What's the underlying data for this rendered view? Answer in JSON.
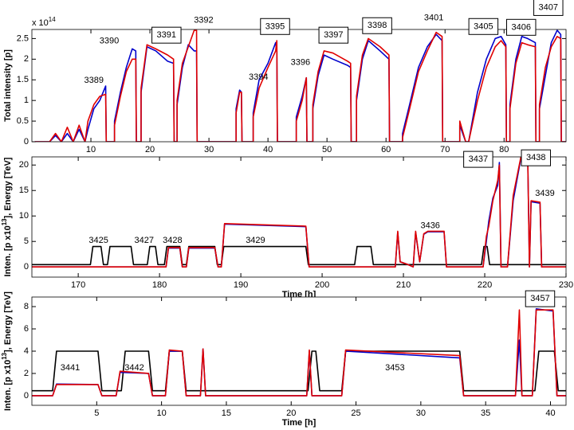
{
  "chart_data": [
    {
      "type": "line",
      "ylabel": [
        "Total intensity [p]"
      ],
      "scale_label": [
        "x 10",
        "14"
      ],
      "xlim": [
        0,
        90.5
      ],
      "ylim": [
        0,
        2.72
      ],
      "xticks": [
        10,
        20,
        30,
        40,
        50,
        60,
        70,
        80
      ],
      "yticks": [
        0,
        0.5,
        1,
        1.5,
        2,
        2.5
      ],
      "x": [
        0.5,
        3,
        4,
        5,
        6,
        7,
        8,
        9,
        9.5,
        10.5,
        11.5,
        12.5,
        12.6,
        14,
        14,
        15,
        16,
        17,
        17.6,
        17.7,
        18.5,
        18.5,
        19.5,
        21,
        23,
        24,
        24.1,
        24.6,
        24.6,
        25.5,
        26.5,
        27.5,
        27.9,
        28,
        34.6,
        34.6,
        35.2,
        35.5,
        35.6,
        37.5,
        37.5,
        38.5,
        40,
        41.3,
        41.5,
        41.6,
        44.8,
        44.8,
        45.8,
        46.5,
        46.6,
        47.6,
        47.6,
        48.5,
        49.5,
        51,
        53.5,
        54,
        54.1,
        55,
        55,
        56,
        57,
        59,
        60.5,
        60.6,
        62.8,
        62.8,
        64,
        65.5,
        67,
        68.5,
        69.5,
        69.6,
        72.5,
        72.5,
        73.5,
        74,
        75.5,
        77,
        78.5,
        79.5,
        80.3,
        80.4,
        81,
        81,
        82,
        83,
        84,
        85.3,
        85.4,
        86,
        86,
        87,
        88,
        89,
        89.6,
        89.7,
        90.5
      ],
      "series": [
        {
          "color": "#0000cc",
          "values": [
            0,
            0,
            0.15,
            0,
            0.2,
            0,
            0.3,
            0,
            0.3,
            0.8,
            1.0,
            1.35,
            0,
            0,
            0.5,
            1.2,
            1.8,
            2.25,
            2.2,
            0,
            0,
            1.2,
            2.3,
            2.2,
            1.95,
            1.9,
            0,
            0,
            0.9,
            1.8,
            2.35,
            2.2,
            2.2,
            0,
            0,
            0.8,
            1.25,
            1.2,
            0,
            0,
            0.7,
            1.5,
            1.9,
            2.4,
            2.2,
            0,
            0,
            0.6,
            1.1,
            1.55,
            0,
            0,
            0.8,
            1.6,
            2.1,
            2.0,
            1.85,
            1.8,
            0,
            0,
            1.0,
            2.0,
            2.45,
            2.2,
            2.0,
            0,
            0,
            0.2,
            0.9,
            1.8,
            2.3,
            2.6,
            2.45,
            0,
            0,
            0.4,
            0,
            0,
            1.2,
            2.0,
            2.5,
            2.55,
            2.35,
            0,
            0,
            0.9,
            2.0,
            2.55,
            2.5,
            2.4,
            0,
            0,
            0.8,
            1.6,
            2.4,
            2.7,
            2.6,
            0,
            0
          ]
        },
        {
          "color": "#e00000",
          "values": [
            0,
            0,
            0.2,
            0,
            0.35,
            0,
            0.4,
            0,
            0.5,
            0.9,
            1.1,
            1.15,
            0,
            0,
            0.4,
            1.1,
            1.7,
            2.0,
            2.0,
            0,
            0,
            1.3,
            2.35,
            2.25,
            2.1,
            2.0,
            0,
            0,
            1.0,
            1.9,
            2.3,
            2.7,
            2.7,
            0,
            0,
            0.7,
            1.2,
            1.2,
            0,
            0,
            0.6,
            1.3,
            1.8,
            2.2,
            2.45,
            0,
            0,
            0.5,
            1.0,
            1.55,
            0,
            0,
            0.9,
            1.7,
            2.2,
            2.15,
            1.95,
            1.9,
            0,
            0,
            1.1,
            2.1,
            2.5,
            2.3,
            2.1,
            0,
            0,
            0.1,
            0.8,
            1.7,
            2.2,
            2.65,
            2.55,
            0,
            0,
            0.5,
            0,
            0,
            1.0,
            1.8,
            2.3,
            2.45,
            2.3,
            0,
            0,
            0.8,
            1.9,
            2.4,
            2.35,
            2.3,
            0,
            0,
            0.9,
            1.8,
            2.3,
            2.55,
            2.5,
            0,
            0
          ]
        }
      ],
      "annotations": [
        {
          "text": "3389",
          "x": 10.5,
          "y": 1.48,
          "boxed": false
        },
        {
          "text": "3390",
          "x": 13.1,
          "y": 2.44,
          "boxed": false
        },
        {
          "text": "3391",
          "x": 22.8,
          "y": 2.58,
          "boxed": true
        },
        {
          "text": "3392",
          "x": 29.1,
          "y": 2.94,
          "boxed": false
        },
        {
          "text": "3394",
          "x": 38.4,
          "y": 1.56,
          "boxed": false
        },
        {
          "text": "3395",
          "x": 41.2,
          "y": 2.79,
          "boxed": true
        },
        {
          "text": "3396",
          "x": 45.5,
          "y": 1.92,
          "boxed": false
        },
        {
          "text": "3397",
          "x": 51.1,
          "y": 2.58,
          "boxed": true
        },
        {
          "text": "3398",
          "x": 58.5,
          "y": 2.81,
          "boxed": true
        },
        {
          "text": "3401",
          "x": 68.1,
          "y": 3.0,
          "boxed": false
        },
        {
          "text": "3405",
          "x": 76.5,
          "y": 2.79,
          "boxed": true
        },
        {
          "text": "3406",
          "x": 82.9,
          "y": 2.77,
          "boxed": true
        },
        {
          "text": "3407",
          "x": 87.5,
          "y": 3.25,
          "boxed": true
        }
      ]
    },
    {
      "type": "line",
      "ylabel": [
        "Inten. [p x10",
        "13",
        "], Energy [TeV]"
      ],
      "xlabel": "Time [h]",
      "xlim": [
        164.3,
        230
      ],
      "ylim": [
        -2,
        21.6
      ],
      "xticks": [
        170,
        180,
        190,
        200,
        210,
        220,
        230
      ],
      "yticks": [
        0,
        5,
        10,
        15,
        20
      ],
      "series": [
        {
          "color": "#000000",
          "x": [
            164.3,
            171.5,
            171.8,
            172.8,
            173.1,
            173.6,
            173.9,
            176.5,
            176.8,
            178.5,
            178.8,
            179.5,
            179.8,
            180.6,
            180.9,
            182.5,
            182.8,
            183.3,
            183.6,
            186.8,
            187.1,
            187.6,
            187.9,
            198,
            198.3,
            204,
            204.3,
            206,
            206.3,
            219.6,
            219.9,
            220.3,
            220.6,
            230
          ],
          "values": [
            0.45,
            0.45,
            4,
            4,
            0.45,
            0.45,
            4,
            4,
            0.45,
            0.45,
            4,
            4,
            0.45,
            0.45,
            4,
            4,
            0.45,
            0.45,
            4,
            4,
            0.45,
            0.45,
            4,
            4,
            0.45,
            0.45,
            4,
            4,
            0.45,
            0.45,
            4,
            4,
            0.45,
            0.45
          ]
        },
        {
          "color": "#0000cc",
          "x": [
            164.3,
            180.8,
            181.1,
            182.5,
            182.8,
            183.3,
            183.6,
            186.8,
            187.2,
            187.6,
            188,
            198,
            198.4,
            209,
            209.3,
            209.6,
            210.5,
            211.2,
            211.5,
            212,
            212.5,
            213,
            215,
            215.3,
            219.8,
            220.2,
            220.5,
            221,
            221.6,
            221.8,
            222,
            222.8,
            223.5,
            224.5,
            225.3,
            225.5,
            225.7,
            226.8,
            227,
            230
          ],
          "values": [
            0,
            0,
            3.7,
            3.7,
            0,
            0,
            3.7,
            3.7,
            0,
            0,
            8.4,
            7.9,
            0,
            0,
            6.8,
            1,
            0.5,
            0,
            6.8,
            1,
            6.4,
            6.9,
            6.9,
            0,
            0,
            5,
            9,
            13.5,
            16,
            20.5,
            0,
            0,
            13,
            21.8,
            20.3,
            0,
            12.8,
            12.5,
            0,
            0
          ]
        },
        {
          "color": "#e00000",
          "x": [
            164.3,
            180.8,
            181.1,
            182.5,
            182.8,
            183.3,
            183.6,
            186.8,
            187.2,
            187.6,
            188,
            198,
            198.4,
            209,
            209.3,
            209.6,
            210.5,
            211.2,
            211.5,
            212,
            212.5,
            213,
            215,
            215.3,
            219.8,
            220.2,
            220.5,
            221,
            221.6,
            221.8,
            222,
            222.8,
            223.5,
            224.5,
            225.3,
            225.5,
            225.7,
            226.8,
            227,
            230
          ],
          "values": [
            0,
            0,
            3.8,
            3.8,
            0,
            0,
            3.8,
            3.8,
            0,
            0,
            8.5,
            8,
            0,
            0,
            7,
            1,
            0.5,
            0,
            7,
            1,
            6.5,
            7,
            7,
            0,
            0,
            6,
            8,
            13,
            17,
            20,
            0,
            0,
            14,
            22,
            20.5,
            0,
            13,
            12.7,
            0,
            0
          ]
        }
      ],
      "annotations": [
        {
          "text": "3425",
          "x": 172.5,
          "y": 5.2,
          "boxed": false
        },
        {
          "text": "3427",
          "x": 178.1,
          "y": 5.2,
          "boxed": false
        },
        {
          "text": "3428",
          "x": 181.6,
          "y": 5.2,
          "boxed": false
        },
        {
          "text": "3429",
          "x": 191.8,
          "y": 5.2,
          "boxed": false
        },
        {
          "text": "3436",
          "x": 213.3,
          "y": 8.1,
          "boxed": false
        },
        {
          "text": "3437",
          "x": 219.2,
          "y": 21.1,
          "boxed": true
        },
        {
          "text": "3438",
          "x": 226.3,
          "y": 21.4,
          "boxed": true
        },
        {
          "text": "3439",
          "x": 227.4,
          "y": 14.4,
          "boxed": false
        }
      ]
    },
    {
      "type": "line",
      "ylabel": [
        "Inten. [p x10",
        "13",
        "], Energy [TeV]"
      ],
      "xlabel": "Time [h]",
      "xlim": [
        0,
        41.2
      ],
      "ylim": [
        -0.86,
        8.86
      ],
      "xticks": [
        5,
        10,
        15,
        20,
        25,
        30,
        35,
        40
      ],
      "yticks": [
        0,
        2,
        4,
        6,
        8
      ],
      "series": [
        {
          "color": "#000000",
          "x": [
            0,
            1.6,
            1.9,
            5.1,
            5.4,
            6.9,
            7.2,
            9.0,
            9.3,
            10.3,
            10.6,
            11.6,
            11.9,
            21.3,
            21.6,
            21.9,
            22.2,
            23.9,
            24.2,
            33.0,
            33.3,
            38.8,
            39.1,
            40.3,
            40.6,
            41.2
          ],
          "values": [
            0.45,
            0.45,
            4,
            4,
            0.45,
            0.45,
            4,
            4,
            0.45,
            0.45,
            4,
            4,
            0.45,
            0.45,
            4,
            4,
            0.45,
            0.45,
            4,
            4,
            0.45,
            0.45,
            4,
            4,
            0.45,
            0.45
          ]
        },
        {
          "color": "#0000cc",
          "x": [
            0,
            1.6,
            1.9,
            5.1,
            5.4,
            6.5,
            6.8,
            9.0,
            9.3,
            10.3,
            10.6,
            11.6,
            11.9,
            13.0,
            13.2,
            13.4,
            21.2,
            21.4,
            21.6,
            23.9,
            24.2,
            33.0,
            33.3,
            37.3,
            37.6,
            37.8,
            38.6,
            38.9,
            40.2,
            40.5,
            41.2
          ],
          "values": [
            0,
            0,
            1.05,
            1.0,
            0,
            0,
            2.1,
            2.0,
            0,
            0,
            4.0,
            4.0,
            0,
            0,
            4.2,
            0,
            0,
            4.0,
            0,
            0,
            4.0,
            3.4,
            0,
            0,
            5.0,
            0,
            0,
            7.8,
            7.6,
            0,
            0
          ]
        },
        {
          "color": "#e00000",
          "x": [
            0,
            1.6,
            1.9,
            5.1,
            5.4,
            6.5,
            6.8,
            9.0,
            9.3,
            10.3,
            10.6,
            11.6,
            11.9,
            13.0,
            13.2,
            13.4,
            21.2,
            21.4,
            21.6,
            23.9,
            24.2,
            33.0,
            33.3,
            37.3,
            37.6,
            37.8,
            38.6,
            38.9,
            40.2,
            40.5,
            41.2
          ],
          "values": [
            0,
            0,
            1.0,
            1.0,
            0,
            0,
            2.2,
            2.0,
            0,
            0,
            4.1,
            4.0,
            0,
            0,
            4.2,
            0,
            0,
            4.1,
            0,
            0,
            4.1,
            3.6,
            0,
            0,
            7.7,
            0,
            0,
            7.7,
            7.7,
            0,
            0
          ]
        }
      ],
      "annotations": [
        {
          "text": "3441",
          "x": 2.95,
          "y": 2.5,
          "boxed": false
        },
        {
          "text": "3442",
          "x": 7.9,
          "y": 2.5,
          "boxed": false
        },
        {
          "text": "3453",
          "x": 28.0,
          "y": 2.5,
          "boxed": false
        },
        {
          "text": "3457",
          "x": 39.2,
          "y": 8.7,
          "boxed": true
        }
      ]
    }
  ]
}
